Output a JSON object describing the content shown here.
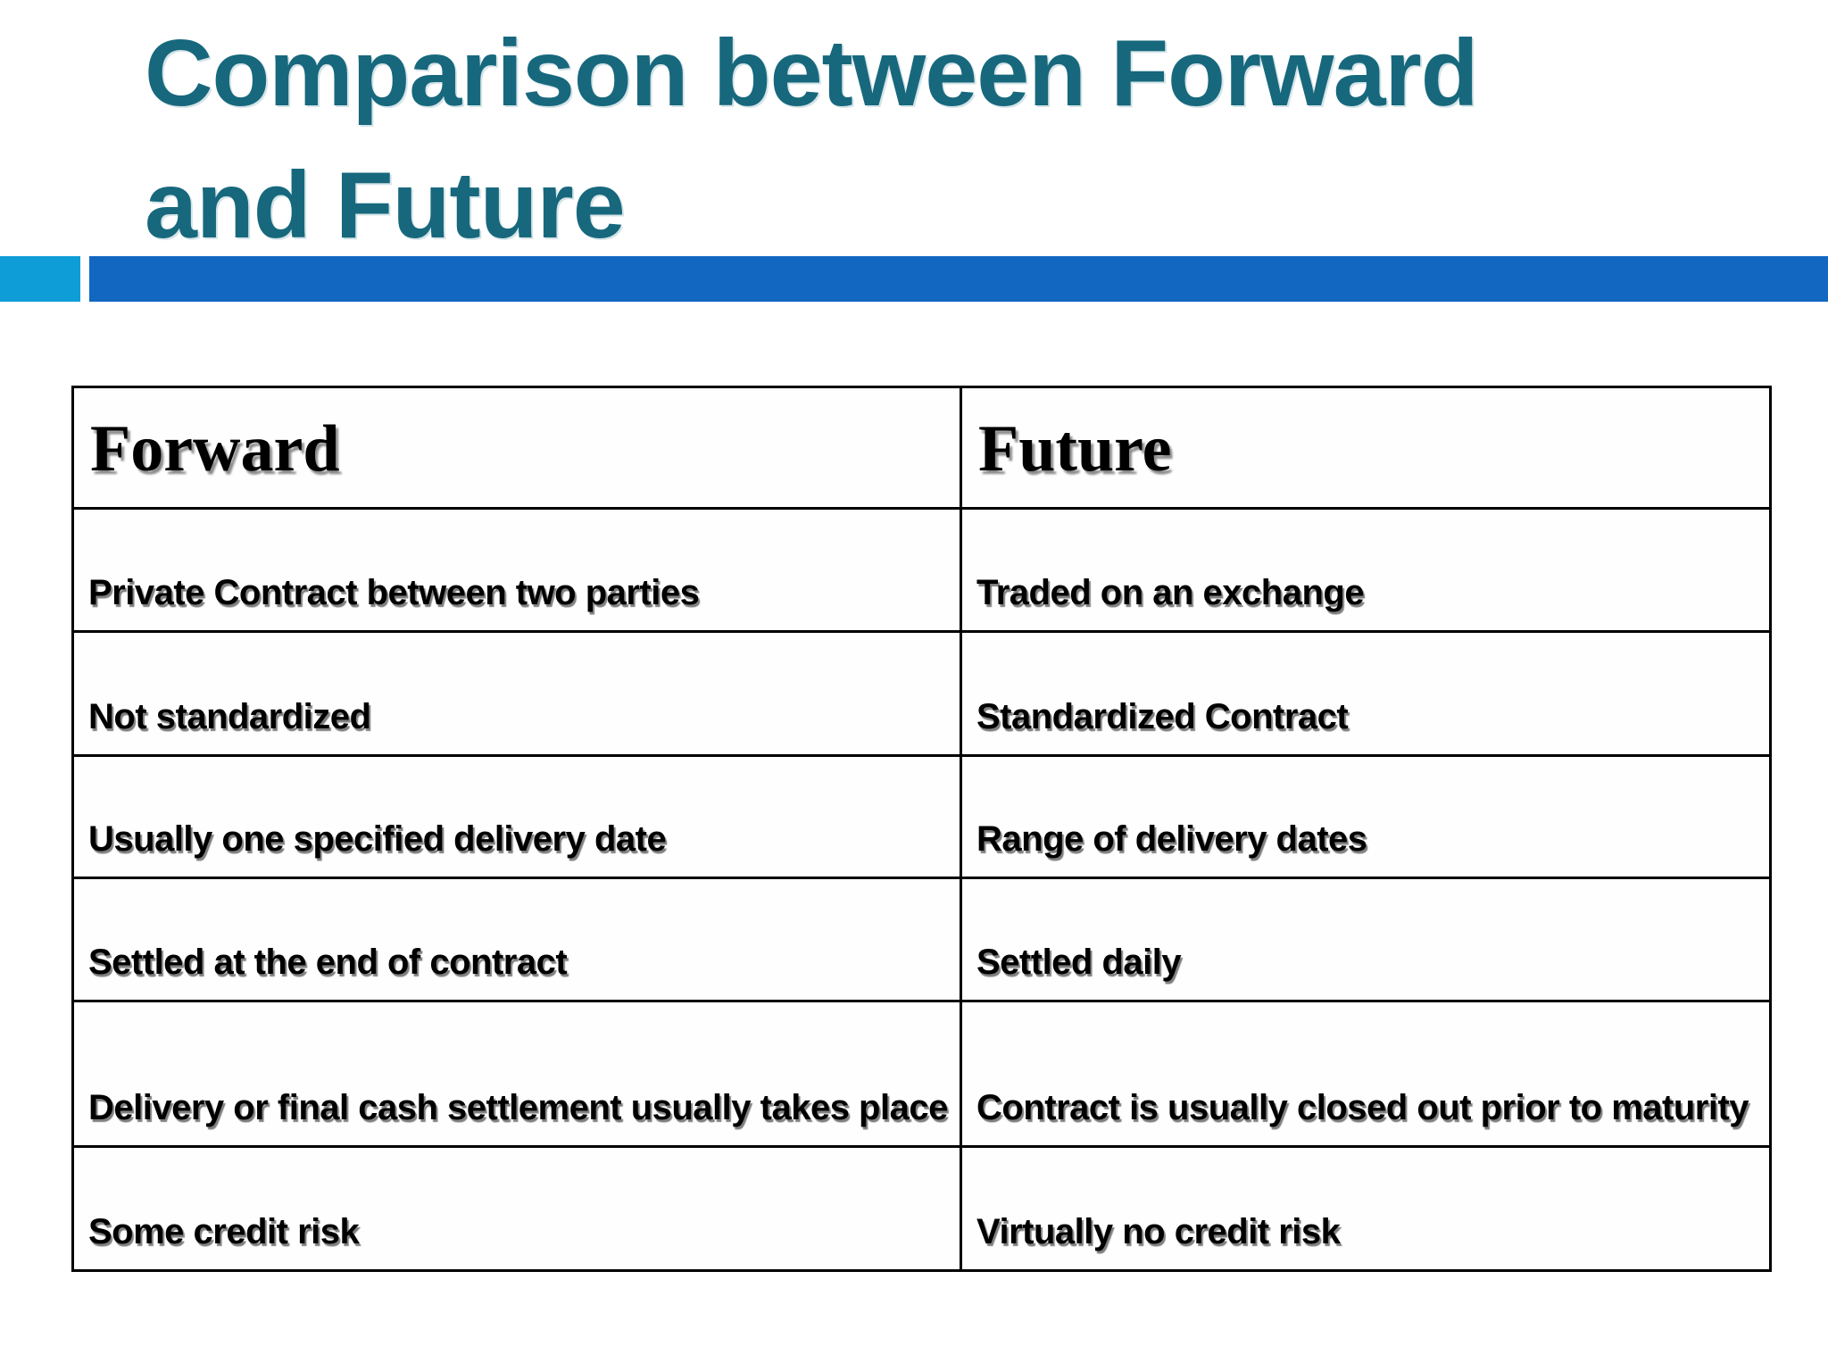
{
  "title": {
    "line1": "Comparison between Forward",
    "line2": "and Future",
    "full_text": "Comparison between Forward and Future"
  },
  "colors": {
    "title_teal": "#17687d",
    "accent_light_blue": "#0f9dd8",
    "accent_dark_blue": "#1267c1",
    "table_border": "#000000",
    "text": "#000000"
  },
  "table": {
    "headers": [
      "Forward",
      "Future"
    ],
    "rows": [
      {
        "forward": "Private Contract between two parties",
        "future": "Traded on an exchange"
      },
      {
        "forward": "Not standardized",
        "future": "Standardized Contract"
      },
      {
        "forward": "Usually one specified delivery date",
        "future": "Range of delivery dates"
      },
      {
        "forward": "Settled at the end of contract",
        "future": "Settled daily"
      },
      {
        "forward": "Delivery or final cash settlement usually takes place",
        "future": "Contract is usually closed out prior to maturity"
      },
      {
        "forward": "Some credit risk",
        "future": "Virtually no credit risk"
      }
    ]
  }
}
